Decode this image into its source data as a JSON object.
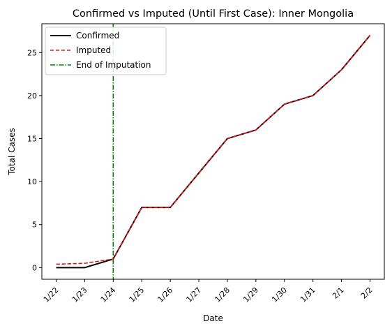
{
  "chart_data": {
    "type": "line",
    "title": "Confirmed vs Imputed (Until First Case): Inner Mongolia",
    "xlabel": "Date",
    "ylabel": "Total Cases",
    "categories": [
      "1/22",
      "1/23",
      "1/24",
      "1/25",
      "1/26",
      "1/27",
      "1/28",
      "1/29",
      "1/30",
      "1/31",
      "2/1",
      "2/2"
    ],
    "ylim": [
      -1.35,
      28.35
    ],
    "yticks": [
      0,
      5,
      10,
      15,
      20,
      25
    ],
    "grid": false,
    "legend_position": "top-left",
    "series": [
      {
        "name": "Confirmed",
        "color": "#000000",
        "style": "solid",
        "values": [
          0,
          0,
          1,
          7,
          7,
          11,
          15,
          16,
          19,
          20,
          23,
          27
        ]
      },
      {
        "name": "Imputed",
        "color": "#e41a1c",
        "style": "dashed",
        "values": [
          0.4,
          0.5,
          1,
          7,
          7,
          11,
          15,
          16,
          19,
          20,
          23,
          27
        ]
      }
    ],
    "vline": {
      "name": "End of Imputation",
      "color": "#008000",
      "style": "dashdot",
      "x": "1/24"
    }
  }
}
